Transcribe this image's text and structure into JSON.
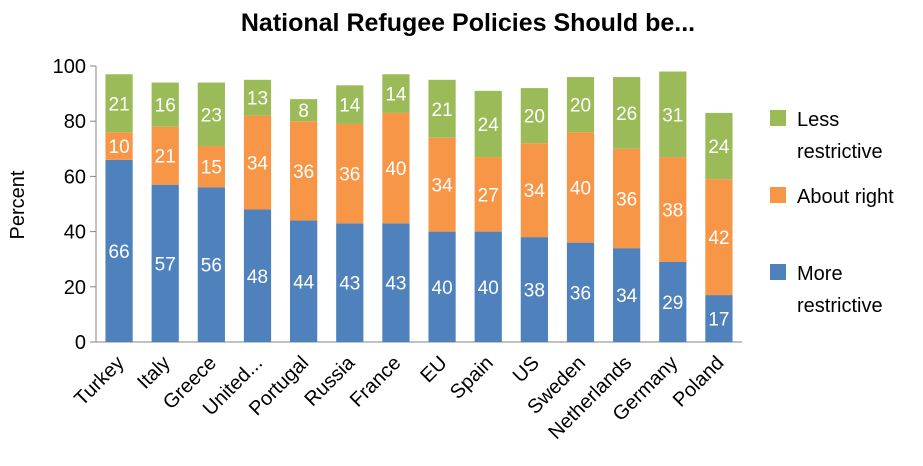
{
  "chart_data": {
    "type": "bar",
    "stacked": true,
    "title": "National Refugee Policies Should be...",
    "ylabel": "Percent",
    "xlabel": "",
    "ylim": [
      0,
      100
    ],
    "yticks": [
      0,
      20,
      40,
      60,
      80,
      100
    ],
    "grid": false,
    "legend_position": "right",
    "categories": [
      "Turkey",
      "Italy",
      "Greece",
      "United...",
      "Portugal",
      "Russia",
      "France",
      "EU",
      "Spain",
      "US",
      "Sweden",
      "Netherlands",
      "Germany",
      "Poland"
    ],
    "series": [
      {
        "name": "More restrictive",
        "legend_lines": [
          "More",
          "restrictive"
        ],
        "color": "#4f81bd",
        "values": [
          66,
          57,
          56,
          48,
          44,
          43,
          43,
          40,
          40,
          38,
          36,
          34,
          29,
          17
        ]
      },
      {
        "name": "About right",
        "legend_lines": [
          "About right"
        ],
        "color": "#f79646",
        "values": [
          10,
          21,
          15,
          34,
          36,
          36,
          40,
          34,
          27,
          34,
          40,
          36,
          38,
          42
        ]
      },
      {
        "name": "Less restrictive",
        "legend_lines": [
          "Less",
          "restrictive"
        ],
        "color": "#9bbb59",
        "values": [
          21,
          16,
          23,
          13,
          8,
          14,
          14,
          21,
          24,
          20,
          20,
          26,
          31,
          24
        ]
      }
    ]
  }
}
